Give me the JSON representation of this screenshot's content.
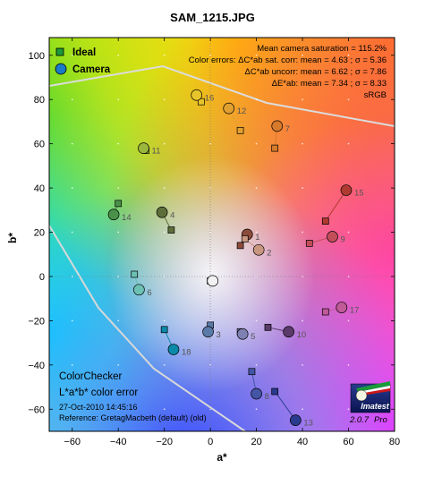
{
  "chart_data": {
    "type": "scatter",
    "title": "SAM_1215.JPG",
    "xlabel": "a*",
    "ylabel": "b*",
    "xlim": [
      -70,
      80
    ],
    "ylim": [
      -70,
      108
    ],
    "x_ticks": [
      -60,
      -40,
      -20,
      0,
      20,
      40,
      60,
      80
    ],
    "y_ticks": [
      -60,
      -40,
      -20,
      0,
      20,
      40,
      60,
      80,
      100
    ],
    "grid": "dots",
    "legend": {
      "position": "top-left",
      "entries": [
        {
          "name": "Ideal",
          "marker": "square"
        },
        {
          "name": "Camera",
          "marker": "circle"
        }
      ]
    },
    "stats": {
      "line1": "Mean camera saturation = 115.2%",
      "line2": "Color errors: ΔC*ab sat. corr:  mean = 4.63 ;  σ = 5.36",
      "line3": "ΔC*ab uncorr:  mean = 6.62 ;  σ = 7.86",
      "line4": "ΔE*ab:  mean = 7.34 ;  σ = 8.33",
      "line5": "sRGB"
    },
    "annotation": {
      "line1": "ColorChecker",
      "line2": "L*a*b* color error",
      "line3": "27-Oct-2010 14:45:16",
      "line4": "Reference: GretagMacbeth (default) (old)"
    },
    "logo": {
      "text": "Imatest",
      "version": "2.0.7",
      "edition": "Pro"
    },
    "patches": [
      {
        "id": "1",
        "ideal": [
          13,
          14
        ],
        "camera": [
          16,
          19
        ],
        "color": "#8b4a3a"
      },
      {
        "id": "2",
        "ideal": [
          15,
          17
        ],
        "camera": [
          21,
          12
        ],
        "color": "#c99680"
      },
      {
        "id": "3",
        "ideal": [
          0,
          -22
        ],
        "camera": [
          -1,
          -25
        ],
        "color": "#5a7aa8"
      },
      {
        "id": "4",
        "ideal": [
          -17,
          21
        ],
        "camera": [
          -21,
          29
        ],
        "color": "#5e6e3a"
      },
      {
        "id": "5",
        "ideal": [
          13,
          -25
        ],
        "camera": [
          14,
          -26
        ],
        "color": "#7d80b0"
      },
      {
        "id": "6",
        "ideal": [
          -33,
          1
        ],
        "camera": [
          -31,
          -6
        ],
        "color": "#6cc0b4"
      },
      {
        "id": "7",
        "ideal": [
          28,
          58
        ],
        "camera": [
          29,
          68
        ],
        "color": "#d67a2c"
      },
      {
        "id": "8",
        "ideal": [
          18,
          -43
        ],
        "camera": [
          20,
          -53
        ],
        "color": "#4455a5"
      },
      {
        "id": "9",
        "ideal": [
          43,
          15
        ],
        "camera": [
          53,
          18
        ],
        "color": "#c24e5a"
      },
      {
        "id": "10",
        "ideal": [
          25,
          -23
        ],
        "camera": [
          34,
          -25
        ],
        "color": "#5a3a6a"
      },
      {
        "id": "11",
        "ideal": [
          -28,
          57
        ],
        "camera": [
          -29,
          58
        ],
        "color": "#9bb63c"
      },
      {
        "id": "12",
        "ideal": [
          13,
          66
        ],
        "camera": [
          8,
          76
        ],
        "color": "#e0a030"
      },
      {
        "id": "13",
        "ideal": [
          28,
          -52
        ],
        "camera": [
          37,
          -65
        ],
        "color": "#2a3a8e"
      },
      {
        "id": "14",
        "ideal": [
          -40,
          33
        ],
        "camera": [
          -42,
          28
        ],
        "color": "#4a924a"
      },
      {
        "id": "15",
        "ideal": [
          50,
          25
        ],
        "camera": [
          59,
          39
        ],
        "color": "#b03a30"
      },
      {
        "id": "16",
        "ideal": [
          -4,
          79
        ],
        "camera": [
          -6,
          82
        ],
        "color": "#e6c42a"
      },
      {
        "id": "17",
        "ideal": [
          50,
          -16
        ],
        "camera": [
          57,
          -14
        ],
        "color": "#c05a98"
      },
      {
        "id": "18",
        "ideal": [
          -20,
          -24
        ],
        "camera": [
          -16,
          -33
        ],
        "color": "#0a88a8"
      },
      {
        "id": "neutral",
        "ideal": [
          0,
          -2
        ],
        "camera": [
          1,
          -2
        ],
        "color": "#f2f2f2"
      }
    ]
  }
}
